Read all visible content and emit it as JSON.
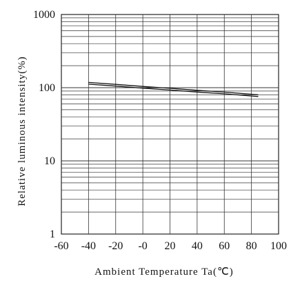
{
  "chart_data": {
    "type": "line",
    "title": "",
    "xlabel": "Ambient Temperature Ta(℃)",
    "ylabel": "Relative luminous intensity(%)",
    "xlim": [
      -60,
      100
    ],
    "ylim": [
      1,
      1000
    ],
    "y_scale": "log",
    "grid": true,
    "x_tick_labels": [
      "-60",
      "-40",
      "-20",
      "-0",
      "20",
      "40",
      "60",
      "80",
      "100"
    ],
    "y_tick_labels": [
      "1",
      "10",
      "100",
      "1000"
    ],
    "series": [
      {
        "color": "#111111",
        "x": [
          -40,
          -20,
          0,
          20,
          40,
          60,
          85
        ],
        "y": [
          118,
          111,
          104,
          98,
          92,
          87,
          80
        ]
      }
    ]
  }
}
